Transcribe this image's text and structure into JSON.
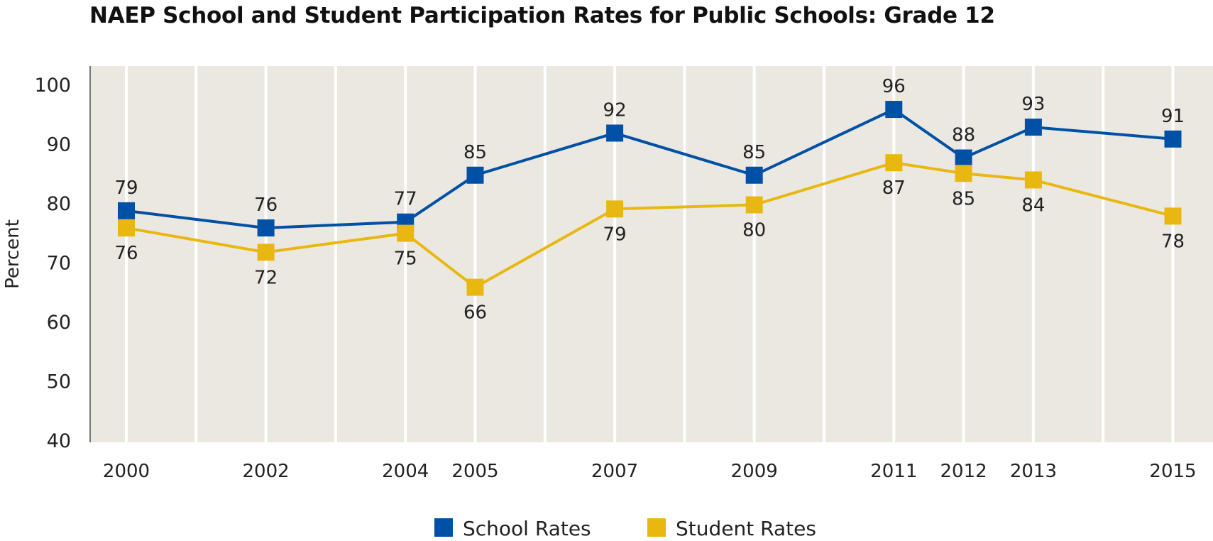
{
  "chart_data": {
    "type": "line",
    "title": "NAEP School and Student Participation Rates for Public Schools: Grade 12",
    "xlabel": "",
    "ylabel": "Percent",
    "x": [
      2000,
      2002,
      2004,
      2005,
      2007,
      2009,
      2011,
      2012,
      2013,
      2015
    ],
    "x_tick_labels": [
      "2000",
      "2002",
      "2004",
      "2005",
      "2007",
      "2009",
      "2011",
      "2012",
      "2013",
      "2015"
    ],
    "y_ticks": [
      40,
      50,
      60,
      70,
      80,
      90,
      100
    ],
    "ylim": [
      40,
      100
    ],
    "xlim": [
      1999,
      2017
    ],
    "grid": "vertical lines at every year",
    "legend_position": "bottom",
    "background": "#ebe8e2",
    "series": [
      {
        "name": "School Rates",
        "color": "#0050a5",
        "values": [
          79,
          76,
          77,
          85,
          92,
          85,
          96,
          88,
          93,
          91
        ],
        "plotted": [
          78.7,
          75.8,
          76.8,
          84.7,
          91.8,
          84.7,
          95.8,
          87.6,
          92.8,
          90.8
        ],
        "label_position": "above"
      },
      {
        "name": "Student Rates",
        "color": "#e8b811",
        "values": [
          76,
          72,
          75,
          66,
          79,
          80,
          87,
          85,
          84,
          78
        ],
        "plotted": [
          75.8,
          71.7,
          74.9,
          65.8,
          79.0,
          79.7,
          86.8,
          85.0,
          83.9,
          77.8
        ],
        "label_position": "below"
      }
    ]
  }
}
